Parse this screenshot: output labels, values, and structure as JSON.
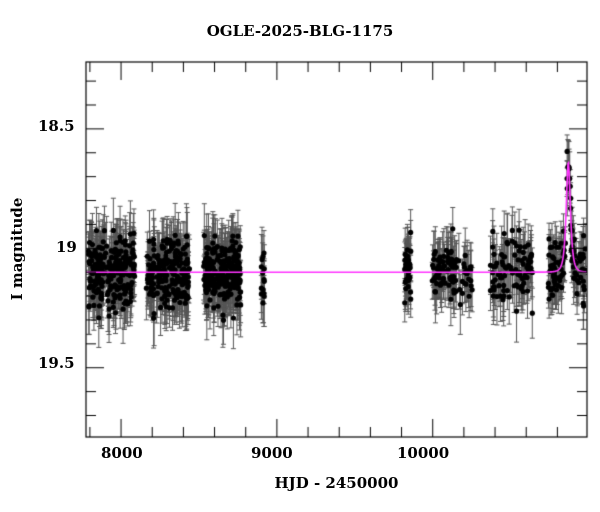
{
  "chart_data": {
    "type": "scatter",
    "title": "OGLE-2025-BLG-1175",
    "xlabel": "HJD - 2450000",
    "ylabel": "I magnitude",
    "xlim": [
      7775,
      10990
    ],
    "ylim": [
      19.79,
      18.22
    ],
    "y_inverted": true,
    "grid": false,
    "legend": null,
    "x_major_ticks": [
      8000,
      9000,
      10000
    ],
    "x_minor_step": 200,
    "y_major_ticks": [
      18.5,
      19,
      19.5
    ],
    "y_minor_step": 0.1,
    "y_tick_labels": [
      "18.5",
      "19",
      "19.5"
    ],
    "x_tick_labels": [
      "8000",
      "9000",
      "10000"
    ],
    "model": {
      "color": "#ff33ff",
      "baseline_mag": 19.1,
      "peak_time": 10870,
      "peak_mag": 18.64,
      "tE_days": 18
    },
    "data_color": "#000000",
    "errorbar_color": "#555555",
    "seasons": [
      {
        "t_start": 7790,
        "t_end": 8090,
        "mean_mag": 19.1,
        "scatter": 0.12,
        "err": 0.11,
        "n": 230
      },
      {
        "t_start": 8160,
        "t_end": 8440,
        "mean_mag": 19.1,
        "scatter": 0.12,
        "err": 0.11,
        "n": 210
      },
      {
        "t_start": 8530,
        "t_end": 8770,
        "mean_mag": 19.1,
        "scatter": 0.12,
        "err": 0.11,
        "n": 230
      },
      {
        "t_start": 8900,
        "t_end": 8920,
        "mean_mag": 19.1,
        "scatter": 0.12,
        "err": 0.11,
        "n": 14
      },
      {
        "t_start": 9820,
        "t_end": 9860,
        "mean_mag": 19.1,
        "scatter": 0.1,
        "err": 0.1,
        "n": 40
      },
      {
        "t_start": 9990,
        "t_end": 10260,
        "mean_mag": 19.1,
        "scatter": 0.11,
        "err": 0.1,
        "n": 90
      },
      {
        "t_start": 10370,
        "t_end": 10640,
        "mean_mag": 19.1,
        "scatter": 0.12,
        "err": 0.1,
        "n": 90
      },
      {
        "t_start": 10740,
        "t_end": 10985,
        "mean_mag": 19.1,
        "scatter": 0.1,
        "err": 0.09,
        "n": 110
      }
    ]
  }
}
